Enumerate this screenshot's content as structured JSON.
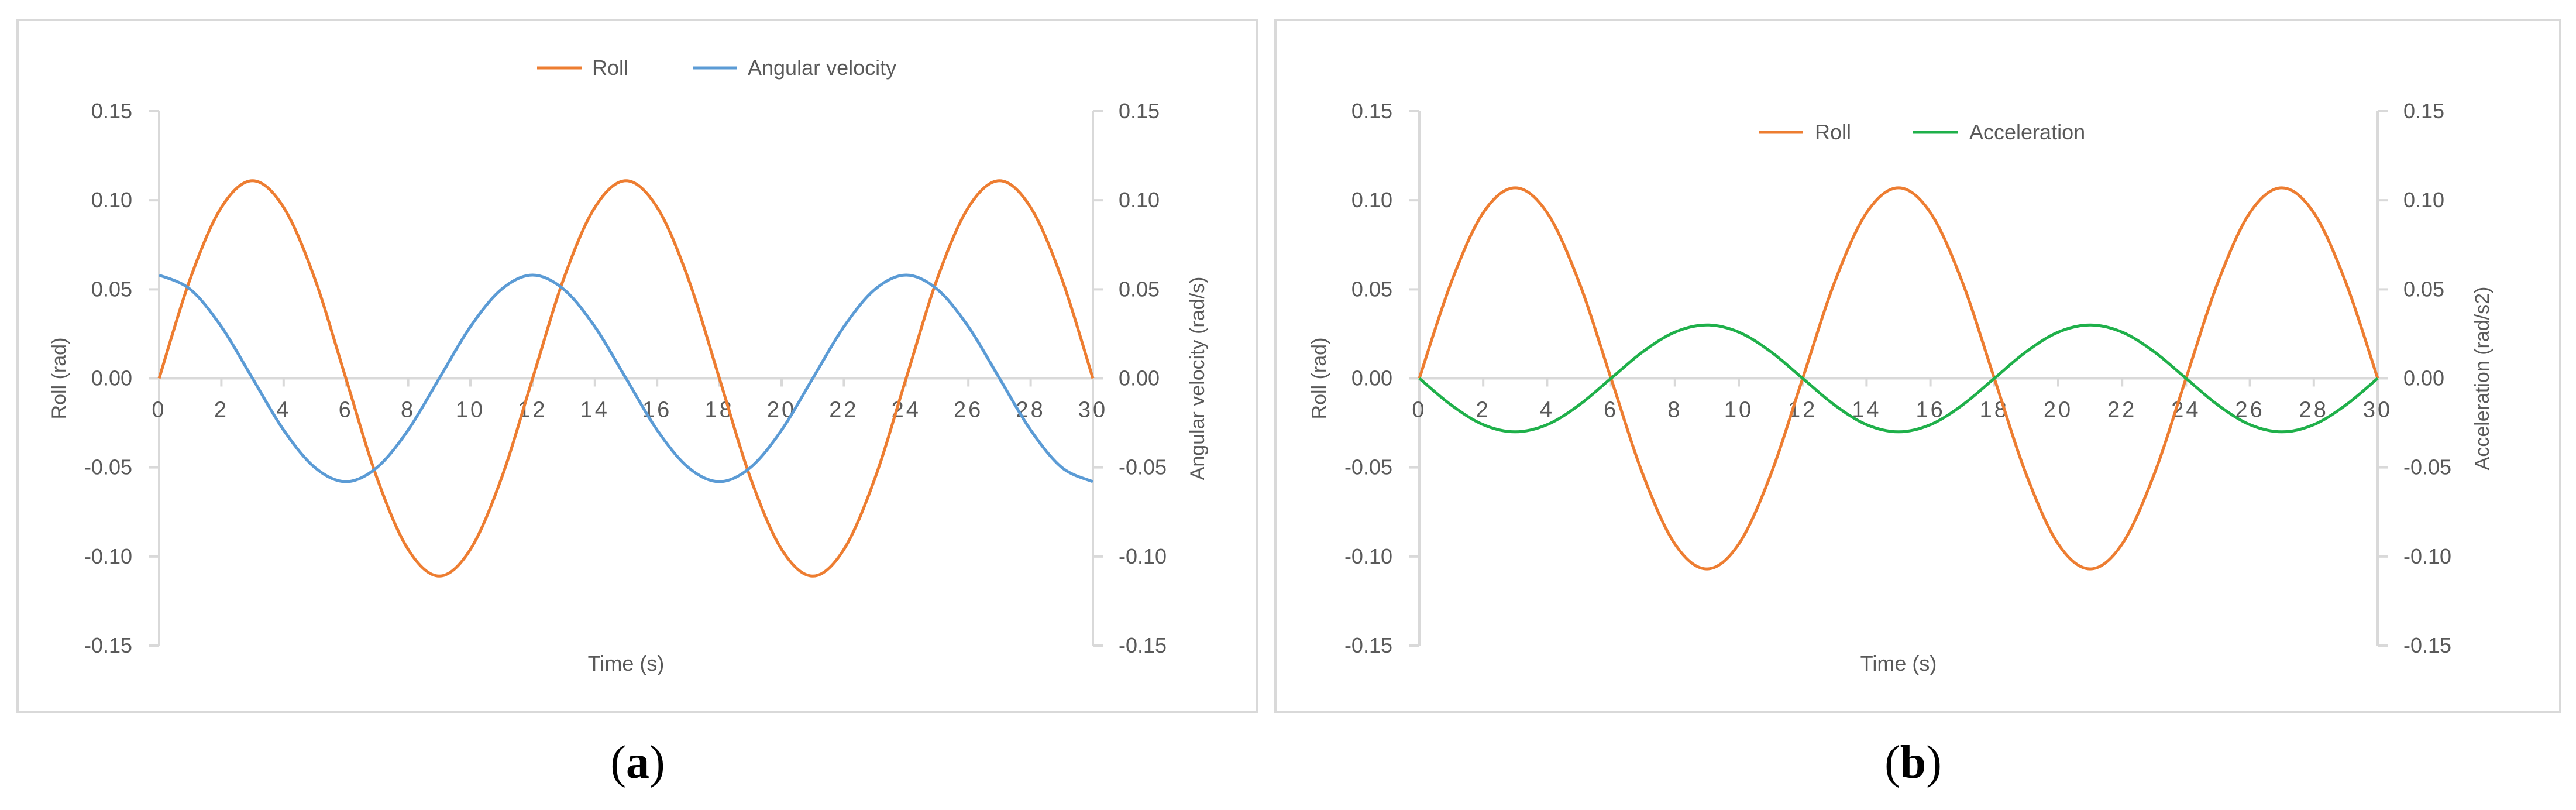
{
  "charts": [
    {
      "caption_open": "(",
      "caption_letter": "a",
      "caption_close": ")",
      "chart_data": {
        "type": "line",
        "xlabel": "Time (s)",
        "ylabel_left": "Roll (rad)",
        "ylabel_right": "Angular velocity (rad/s)",
        "xlim": [
          0,
          30
        ],
        "ylim_left": [
          -0.15,
          0.15
        ],
        "ylim_right": [
          -0.15,
          0.15
        ],
        "x_ticks": [
          "0",
          "2",
          "4",
          "6",
          "8",
          "10",
          "12",
          "14",
          "16",
          "18",
          "20",
          "22",
          "24",
          "26",
          "28",
          "30"
        ],
        "y_ticks_left": [
          "0.15",
          "0.10",
          "0.05",
          "0.00",
          "-0.05",
          "-0.10",
          "-0.15"
        ],
        "y_ticks_right": [
          "0.15",
          "0.10",
          "0.05",
          "0.00",
          "-0.05",
          "-0.10",
          "-0.15"
        ],
        "grid": false,
        "legend_position": "top-center",
        "x": [
          0,
          1,
          2,
          3,
          4,
          5,
          6,
          7,
          8,
          9,
          10,
          11,
          12,
          13,
          14,
          15,
          16,
          17,
          18,
          19,
          20,
          21,
          22,
          23,
          24,
          25,
          26,
          27,
          28,
          29,
          30
        ],
        "series": [
          {
            "name": "Roll",
            "axis": "left",
            "color": "#ed7d31",
            "values": [
              0.0,
              0.056,
              0.096,
              0.111,
              0.096,
              0.056,
              0.0,
              -0.056,
              -0.096,
              -0.111,
              -0.096,
              -0.056,
              0.0,
              0.056,
              0.096,
              0.111,
              0.096,
              0.056,
              0.0,
              -0.056,
              -0.096,
              -0.111,
              -0.096,
              -0.056,
              0.0,
              0.056,
              0.096,
              0.111,
              0.096,
              0.056,
              0.0
            ]
          },
          {
            "name": "Angular velocity",
            "axis": "right",
            "color": "#5b9bd5",
            "values": [
              0.058,
              0.05,
              0.029,
              0.0,
              -0.029,
              -0.05,
              -0.058,
              -0.05,
              -0.029,
              0.0,
              0.029,
              0.05,
              0.058,
              0.05,
              0.029,
              0.0,
              -0.029,
              -0.05,
              -0.058,
              -0.05,
              -0.029,
              0.0,
              0.029,
              0.05,
              0.058,
              0.05,
              0.029,
              0.0,
              -0.029,
              -0.05,
              -0.058
            ]
          }
        ]
      }
    },
    {
      "caption_open": "(",
      "caption_letter": "b",
      "caption_close": ")",
      "chart_data": {
        "type": "line",
        "xlabel": "Time (s)",
        "ylabel_left": "Roll (rad)",
        "ylabel_right": "Acceleration (rad/s2)",
        "xlim": [
          0,
          30
        ],
        "ylim_left": [
          -0.15,
          0.15
        ],
        "ylim_right": [
          -0.15,
          0.15
        ],
        "x_ticks": [
          "0",
          "2",
          "4",
          "6",
          "8",
          "10",
          "12",
          "14",
          "16",
          "18",
          "20",
          "22",
          "24",
          "26",
          "28",
          "30"
        ],
        "y_ticks_left": [
          "0.15",
          "0.10",
          "0.05",
          "0.00",
          "-0.05",
          "-0.10",
          "-0.15"
        ],
        "y_ticks_right": [
          "0.15",
          "0.10",
          "0.05",
          "0.00",
          "-0.05",
          "-0.10",
          "-0.15"
        ],
        "grid": false,
        "legend_position": "top-center",
        "x": [
          0,
          1,
          2,
          3,
          4,
          5,
          6,
          7,
          8,
          9,
          10,
          11,
          12,
          13,
          14,
          15,
          16,
          17,
          18,
          19,
          20,
          21,
          22,
          23,
          24,
          25,
          26,
          27,
          28,
          29,
          30
        ],
        "series": [
          {
            "name": "Roll",
            "axis": "left",
            "color": "#ed7d31",
            "values": [
              0.0,
              0.054,
              0.093,
              0.107,
              0.093,
              0.054,
              0.0,
              -0.054,
              -0.093,
              -0.107,
              -0.093,
              -0.054,
              0.0,
              0.054,
              0.093,
              0.107,
              0.093,
              0.054,
              0.0,
              -0.054,
              -0.093,
              -0.107,
              -0.093,
              -0.054,
              0.0,
              0.054,
              0.093,
              0.107,
              0.093,
              0.054,
              0.0
            ]
          },
          {
            "name": "Acceleration",
            "axis": "right",
            "color": "#1fb04a",
            "values": [
              0.0,
              -0.015,
              -0.026,
              -0.03,
              -0.026,
              -0.015,
              0.0,
              0.015,
              0.026,
              0.03,
              0.026,
              0.015,
              0.0,
              -0.015,
              -0.026,
              -0.03,
              -0.026,
              -0.015,
              0.0,
              0.015,
              0.026,
              0.03,
              0.026,
              0.015,
              0.0,
              -0.015,
              -0.026,
              -0.03,
              -0.026,
              -0.015,
              0.0
            ]
          }
        ]
      }
    }
  ]
}
